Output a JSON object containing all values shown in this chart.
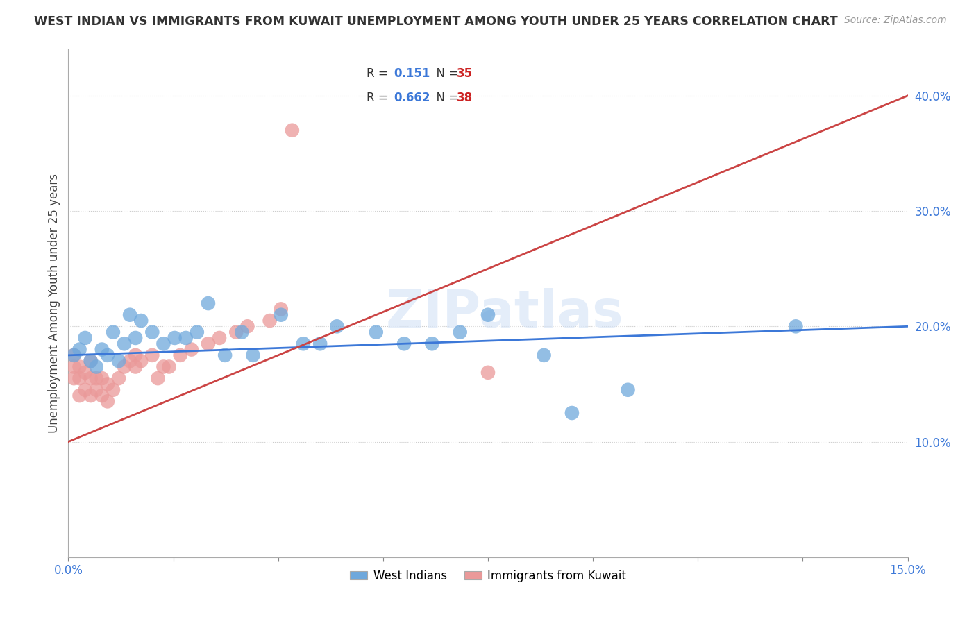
{
  "title": "WEST INDIAN VS IMMIGRANTS FROM KUWAIT UNEMPLOYMENT AMONG YOUTH UNDER 25 YEARS CORRELATION CHART",
  "source": "Source: ZipAtlas.com",
  "ylabel": "Unemployment Among Youth under 25 years",
  "ytick_labels": [
    "10.0%",
    "20.0%",
    "30.0%",
    "40.0%"
  ],
  "ytick_values": [
    0.1,
    0.2,
    0.3,
    0.4
  ],
  "xlim": [
    0.0,
    0.15
  ],
  "ylim": [
    0.0,
    0.44
  ],
  "watermark": "ZIPatlas",
  "blue_color": "#6fa8dc",
  "pink_color": "#ea9999",
  "blue_line_color": "#3c78d8",
  "pink_line_color": "#cc4444",
  "gray_dash_color": "#bbbbbb",
  "blue_x": [
    0.001,
    0.002,
    0.003,
    0.004,
    0.005,
    0.006,
    0.007,
    0.008,
    0.009,
    0.01,
    0.011,
    0.012,
    0.013,
    0.015,
    0.017,
    0.019,
    0.021,
    0.023,
    0.025,
    0.028,
    0.031,
    0.033,
    0.038,
    0.042,
    0.045,
    0.048,
    0.055,
    0.06,
    0.065,
    0.07,
    0.075,
    0.085,
    0.09,
    0.1,
    0.13
  ],
  "blue_y": [
    0.175,
    0.18,
    0.19,
    0.17,
    0.165,
    0.18,
    0.175,
    0.195,
    0.17,
    0.185,
    0.21,
    0.19,
    0.205,
    0.195,
    0.185,
    0.19,
    0.19,
    0.195,
    0.22,
    0.175,
    0.195,
    0.175,
    0.21,
    0.185,
    0.185,
    0.2,
    0.195,
    0.185,
    0.185,
    0.195,
    0.21,
    0.175,
    0.125,
    0.145,
    0.2
  ],
  "pink_x": [
    0.001,
    0.001,
    0.001,
    0.002,
    0.002,
    0.002,
    0.003,
    0.003,
    0.004,
    0.004,
    0.004,
    0.005,
    0.005,
    0.006,
    0.006,
    0.007,
    0.007,
    0.008,
    0.009,
    0.01,
    0.011,
    0.012,
    0.012,
    0.013,
    0.015,
    0.016,
    0.017,
    0.018,
    0.02,
    0.022,
    0.025,
    0.027,
    0.03,
    0.032,
    0.036,
    0.038,
    0.04,
    0.075
  ],
  "pink_y": [
    0.155,
    0.165,
    0.175,
    0.14,
    0.155,
    0.165,
    0.145,
    0.16,
    0.14,
    0.155,
    0.17,
    0.145,
    0.155,
    0.14,
    0.155,
    0.135,
    0.15,
    0.145,
    0.155,
    0.165,
    0.17,
    0.165,
    0.175,
    0.17,
    0.175,
    0.155,
    0.165,
    0.165,
    0.175,
    0.18,
    0.185,
    0.19,
    0.195,
    0.2,
    0.205,
    0.215,
    0.37,
    0.16
  ],
  "blue_line_x0": 0.0,
  "blue_line_x1": 0.15,
  "blue_line_y0": 0.175,
  "blue_line_y1": 0.2,
  "pink_line_x0": 0.0,
  "pink_line_x1": 0.15,
  "pink_line_y0": 0.1,
  "pink_line_y1": 0.4
}
